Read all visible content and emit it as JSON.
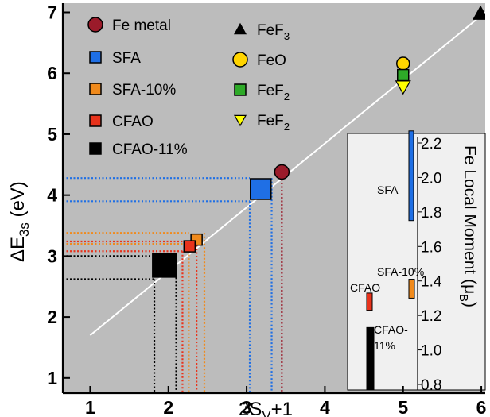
{
  "chart_data": [
    {
      "type": "scatter",
      "xlabel": {
        "base": "2S",
        "sub": "V",
        "rest": "+1"
      },
      "ylabel": {
        "base": "ΔE",
        "sub": "3s",
        "rest": " (eV)"
      },
      "xlim": [
        0.65,
        6.05
      ],
      "ylim": [
        0.75,
        7.15
      ],
      "xticks": [
        1,
        2,
        3,
        4,
        5,
        6
      ],
      "yticks": [
        1,
        2,
        3,
        4,
        5,
        6,
        7
      ],
      "background": "#bcbcbc",
      "fit_line": {
        "x": [
          1.0,
          6.05
        ],
        "y": [
          1.7,
          7.0
        ],
        "color": "#ffffff"
      },
      "series": [
        {
          "name": "Fe metal",
          "label": {
            "base": "Fe metal"
          },
          "marker": "circle",
          "color": "#9b1b2a",
          "x": 3.45,
          "y": 4.38,
          "x_range": null,
          "y_range": null,
          "size": 9
        },
        {
          "name": "SFA",
          "label": {
            "base": "SFA"
          },
          "marker": "square",
          "color": "#1f6fe5",
          "x": 3.18,
          "y": 4.1,
          "x_range": [
            3.04,
            3.32
          ],
          "y_range": [
            3.9,
            4.28
          ],
          "size": 13
        },
        {
          "name": "SFA-10%",
          "label": {
            "base": "SFA-10%"
          },
          "marker": "square",
          "color": "#f08a1c",
          "x": 2.36,
          "y": 3.27,
          "x_range": [
            2.26,
            2.46
          ],
          "y_range": [
            3.2,
            3.38
          ],
          "size": 7
        },
        {
          "name": "CFAO",
          "label": {
            "base": "CFAO"
          },
          "marker": "square",
          "color": "#e8331c",
          "x": 2.27,
          "y": 3.16,
          "x_range": [
            2.18,
            2.36
          ],
          "y_range": [
            3.08,
            3.24
          ],
          "size": 7
        },
        {
          "name": "CFAO-11%",
          "label": {
            "base": "CFAO-11%"
          },
          "marker": "square",
          "color": "#000000",
          "x": 1.95,
          "y": 2.85,
          "x_range": [
            1.82,
            2.1
          ],
          "y_range": [
            2.62,
            3.0
          ],
          "size": 15
        },
        {
          "name": "FeF3",
          "label": {
            "base": "FeF",
            "sub": "3"
          },
          "marker": "triangle-up",
          "color": "#000000",
          "x": 5.99,
          "y": 6.98,
          "x_range": null,
          "y_range": null,
          "size": 9
        },
        {
          "name": "FeO",
          "label": {
            "base": "FeO"
          },
          "marker": "circle",
          "color": "#ffd400",
          "x": 5.0,
          "y": 6.16,
          "x_range": null,
          "y_range": null,
          "size": 8
        },
        {
          "name": "FeF2",
          "label": {
            "base": "FeF",
            "sub": "2"
          },
          "marker": "square",
          "color": "#2eaa28",
          "x": 5.0,
          "y": 5.97,
          "x_range": null,
          "y_range": null,
          "size": 7
        },
        {
          "name": "FeF2",
          "label": {
            "base": "FeF",
            "sub": "2"
          },
          "marker": "triangle-down",
          "color": "#ffff00",
          "x": 5.0,
          "y": 5.78,
          "x_range": null,
          "y_range": null,
          "size": 9
        }
      ],
      "legend": "top-left",
      "grid": false
    },
    {
      "type": "bar",
      "placement": "inset-right",
      "ylabel": {
        "base": "Fe Local Moment (μ",
        "sub": "B",
        "rest": ")"
      },
      "ylim": [
        0.73,
        2.33
      ],
      "yticks": [
        0.8,
        1.0,
        1.2,
        1.4,
        1.6,
        1.8,
        2.0,
        2.2
      ],
      "ytick_labels": [
        "0.8",
        "1.0",
        "1.2",
        "1.4",
        "1.6",
        "1.8",
        "2.0",
        "2.2"
      ],
      "bars": [
        {
          "label": [
            "SFA"
          ],
          "low": 1.75,
          "high": 2.27,
          "color": "#1f6fe5"
        },
        {
          "label": [
            "SFA-10%"
          ],
          "low": 1.3,
          "high": 1.41,
          "color": "#f08a1c"
        },
        {
          "label": [
            "CFAO"
          ],
          "low": 1.23,
          "high": 1.33,
          "color": "#e8331c"
        },
        {
          "label": [
            "CFAO-",
            "11%"
          ],
          "low": 0.77,
          "high": 1.13,
          "color": "#000000"
        }
      ]
    }
  ]
}
